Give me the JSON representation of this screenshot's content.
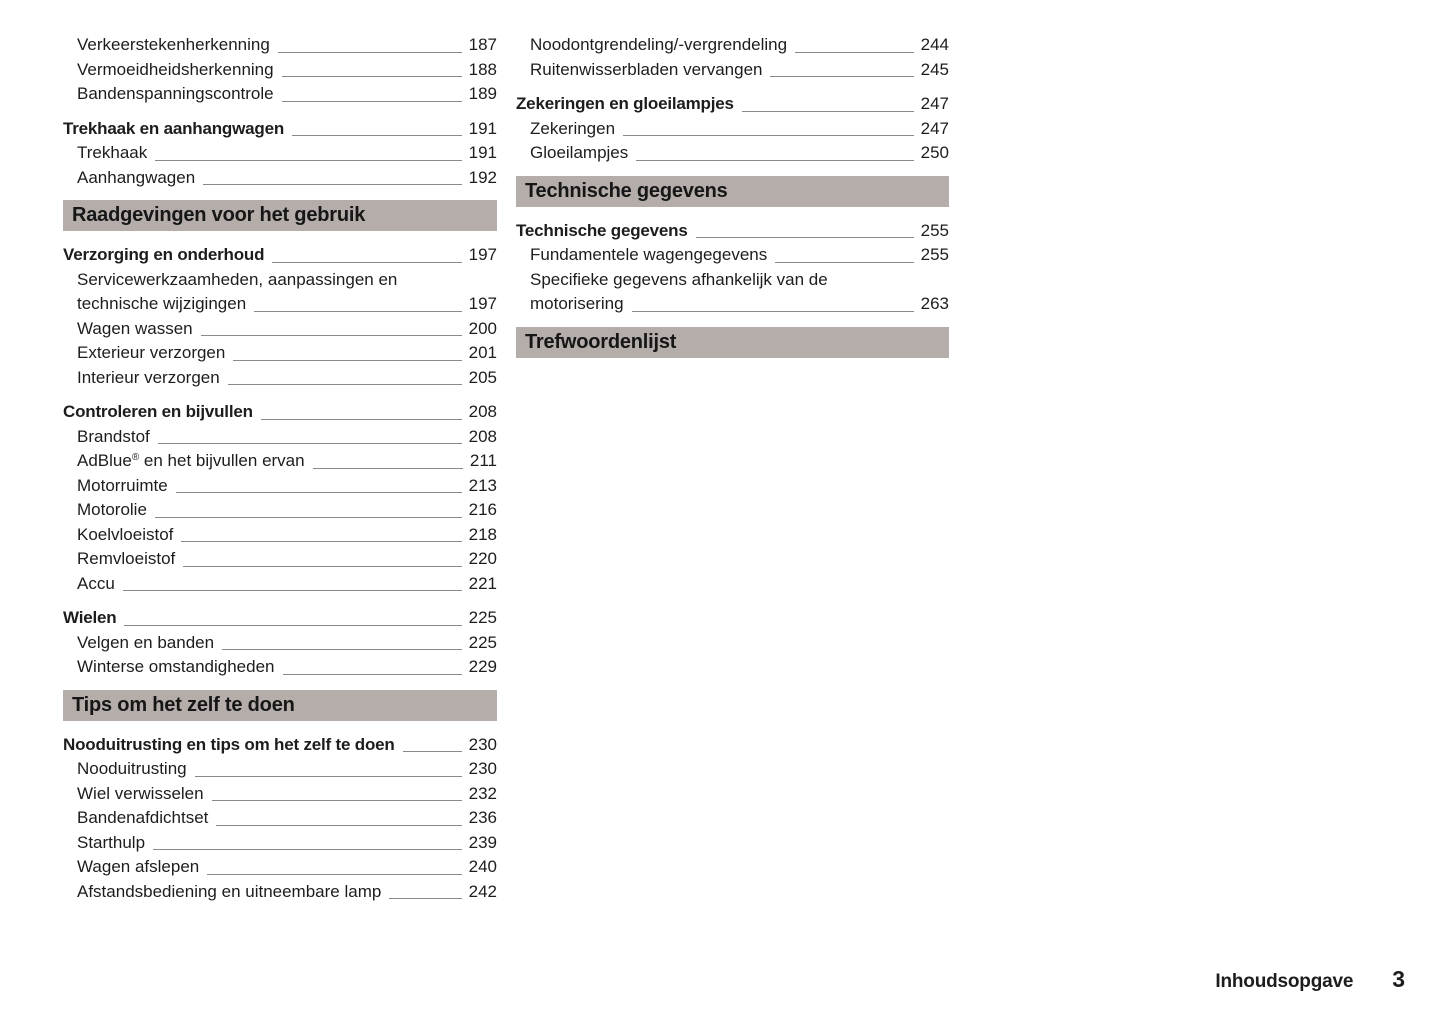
{
  "theme": {
    "background": "#ffffff",
    "text_color": "#1d1d1d",
    "section_bar_color": "#b4ada9",
    "leader_line_color": "#8a8a8a"
  },
  "footer": {
    "label": "Inhoudsopgave",
    "page_number": "3"
  },
  "columns": [
    {
      "blocks": [
        {
          "type": "group",
          "entries": [
            {
              "text": "Verkeerstekenherkenning",
              "page": "187",
              "indent": true
            },
            {
              "text": "Vermoeidheidsherkenning",
              "page": "188",
              "indent": true
            },
            {
              "text": "Bandenspanningscontrole",
              "page": "189",
              "indent": true
            }
          ]
        },
        {
          "type": "group",
          "entries": [
            {
              "text": "Trekhaak en aanhangwagen",
              "page": "191",
              "bold": true
            },
            {
              "text": "Trekhaak",
              "page": "191",
              "indent": true
            },
            {
              "text": "Aanhangwagen",
              "page": "192",
              "indent": true
            }
          ]
        },
        {
          "type": "header",
          "text": "Raadgevingen voor het gebruik"
        },
        {
          "type": "group",
          "entries": [
            {
              "text": "Verzorging en onderhoud",
              "page": "197",
              "bold": true
            },
            {
              "text": "Servicewerkzaamheden, aanpassingen en",
              "text2": "technische wijzigingen",
              "page": "197",
              "indent": true
            },
            {
              "text": "Wagen wassen",
              "page": "200",
              "indent": true
            },
            {
              "text": "Exterieur verzorgen",
              "page": "201",
              "indent": true
            },
            {
              "text": "Interieur verzorgen",
              "page": "205",
              "indent": true
            }
          ]
        },
        {
          "type": "group",
          "entries": [
            {
              "text": "Controleren en bijvullen",
              "page": "208",
              "bold": true
            },
            {
              "text": "Brandstof",
              "page": "208",
              "indent": true
            },
            {
              "text": "AdBlue® en het bijvullen ervan",
              "page": "211",
              "indent": true
            },
            {
              "text": "Motorruimte",
              "page": "213",
              "indent": true
            },
            {
              "text": "Motorolie",
              "page": "216",
              "indent": true
            },
            {
              "text": "Koelvloeistof",
              "page": "218",
              "indent": true
            },
            {
              "text": "Remvloeistof",
              "page": "220",
              "indent": true
            },
            {
              "text": "Accu",
              "page": "221",
              "indent": true
            }
          ]
        },
        {
          "type": "group",
          "entries": [
            {
              "text": "Wielen",
              "page": "225",
              "bold": true
            },
            {
              "text": "Velgen en banden",
              "page": "225",
              "indent": true
            },
            {
              "text": "Winterse omstandigheden",
              "page": "229",
              "indent": true
            }
          ]
        },
        {
          "type": "header",
          "text": "Tips om het zelf te doen"
        },
        {
          "type": "group",
          "entries": [
            {
              "text": "Nooduitrusting en tips om het zelf te doen",
              "page": "230",
              "bold": true
            },
            {
              "text": "Nooduitrusting",
              "page": "230",
              "indent": true
            },
            {
              "text": "Wiel verwisselen",
              "page": "232",
              "indent": true
            },
            {
              "text": "Bandenafdichtset",
              "page": "236",
              "indent": true
            },
            {
              "text": "Starthulp",
              "page": "239",
              "indent": true
            },
            {
              "text": "Wagen afslepen",
              "page": "240",
              "indent": true
            },
            {
              "text": "Afstandsbediening en uitneembare lamp",
              "page": "242",
              "indent": true
            }
          ]
        }
      ]
    },
    {
      "blocks": [
        {
          "type": "group",
          "entries": [
            {
              "text": "Noodontgrendeling/-vergrendeling",
              "page": "244",
              "indent": true
            },
            {
              "text": "Ruitenwisserbladen vervangen",
              "page": "245",
              "indent": true
            }
          ]
        },
        {
          "type": "group",
          "entries": [
            {
              "text": "Zekeringen en gloeilampjes",
              "page": "247",
              "bold": true
            },
            {
              "text": "Zekeringen",
              "page": "247",
              "indent": true
            },
            {
              "text": "Gloeilampjes",
              "page": "250",
              "indent": true
            }
          ]
        },
        {
          "type": "header",
          "text": "Technische gegevens"
        },
        {
          "type": "group",
          "entries": [
            {
              "text": "Technische gegevens",
              "page": "255",
              "bold": true
            },
            {
              "text": "Fundamentele wagengegevens",
              "page": "255",
              "indent": true
            },
            {
              "text": "Specifieke gegevens afhankelijk van de",
              "text2": "motorisering",
              "page": "263",
              "indent": true
            }
          ]
        },
        {
          "type": "header",
          "text": "Trefwoordenlijst"
        }
      ]
    }
  ]
}
